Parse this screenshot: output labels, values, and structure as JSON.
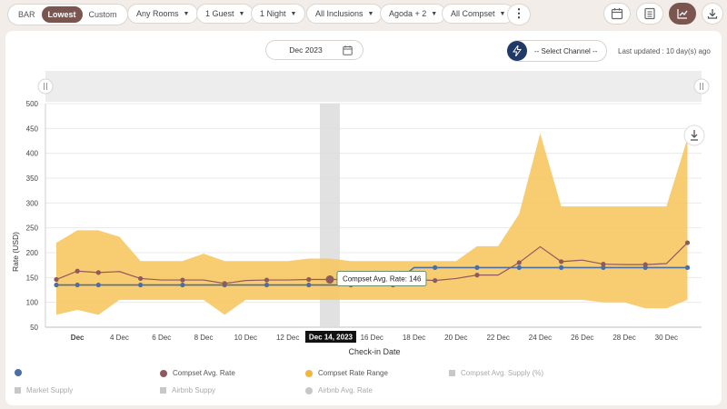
{
  "rate_tabs": [
    "BAR",
    "Lowest",
    "Custom"
  ],
  "filters": {
    "rooms": "Any Rooms",
    "guests": "1 Guest",
    "nights": "1 Night",
    "inclusions": "All Inclusions",
    "channels": "Agoda + 2",
    "compset": "All Compset"
  },
  "month_selector": "Dec 2023",
  "channel_selector": "-- Select Channel --",
  "last_updated": "Last updated : 10 day(s) ago",
  "tooltip": {
    "label": "Compset Avg. Rate: 146",
    "date": "Dec 14, 2023"
  },
  "colors": {
    "brand": "#7b5550",
    "range_fill": "#f7c760",
    "avg_rate": "#8e5a5e",
    "own_rate": "#4a6fa5",
    "nav": "#1f3a66"
  },
  "legend": {
    "row1": [
      "",
      "Compset Avg. Rate",
      "Compset Rate Range",
      "Compset Avg. Supply (%)"
    ],
    "row2": [
      "Market Supply",
      "Airbnb Suppy",
      "Airbnb Avg. Rate"
    ]
  },
  "chart_data": {
    "type": "line",
    "title": "",
    "xlabel": "Check-in Date",
    "ylabel": "Rate (USD)",
    "ylim": [
      50,
      500
    ],
    "yticks": [
      50,
      100,
      150,
      200,
      250,
      300,
      350,
      400,
      450,
      500
    ],
    "x": [
      1,
      2,
      3,
      4,
      5,
      6,
      7,
      8,
      9,
      10,
      11,
      12,
      13,
      14,
      15,
      16,
      17,
      18,
      19,
      20,
      21,
      22,
      23,
      24,
      25,
      26,
      27,
      28,
      29,
      30,
      31
    ],
    "xtick_labels": [
      {
        "day": 2,
        "label": "Dec"
      },
      {
        "day": 4,
        "label": "4 Dec"
      },
      {
        "day": 6,
        "label": "6 Dec"
      },
      {
        "day": 8,
        "label": "8 Dec"
      },
      {
        "day": 10,
        "label": "10 Dec"
      },
      {
        "day": 12,
        "label": "12 Dec"
      },
      {
        "day": 14,
        "label": "Dec 14, 2023"
      },
      {
        "day": 16,
        "label": "16 Dec"
      },
      {
        "day": 18,
        "label": "18 Dec"
      },
      {
        "day": 20,
        "label": "20 Dec"
      },
      {
        "day": 22,
        "label": "22 Dec"
      },
      {
        "day": 24,
        "label": "24 Dec"
      },
      {
        "day": 26,
        "label": "26 Dec"
      },
      {
        "day": 28,
        "label": "28 Dec"
      },
      {
        "day": 30,
        "label": "30 Dec"
      }
    ],
    "series": [
      {
        "name": "",
        "values": [
          135,
          135,
          135,
          135,
          135,
          135,
          135,
          135,
          135,
          135,
          135,
          135,
          135,
          135,
          135,
          135,
          135,
          170,
          170,
          170,
          170,
          170,
          170,
          170,
          170,
          170,
          170,
          170,
          170,
          170,
          170
        ]
      },
      {
        "name": "Compset Avg. Rate",
        "values": [
          146,
          163,
          160,
          162,
          148,
          145,
          145,
          145,
          138,
          144,
          145,
          145,
          146,
          146,
          146,
          146,
          146,
          146,
          144,
          148,
          155,
          155,
          180,
          212,
          182,
          185,
          177,
          176,
          176,
          178,
          220
        ]
      }
    ],
    "range": {
      "name": "Compset Rate Range",
      "low": [
        75,
        85,
        75,
        105,
        105,
        105,
        105,
        105,
        75,
        105,
        105,
        105,
        105,
        105,
        105,
        105,
        105,
        105,
        105,
        105,
        105,
        105,
        105,
        105,
        105,
        105,
        100,
        100,
        88,
        88,
        105
      ],
      "high": [
        220,
        245,
        245,
        232,
        183,
        183,
        183,
        198,
        183,
        183,
        183,
        183,
        188,
        188,
        183,
        183,
        183,
        183,
        183,
        183,
        213,
        213,
        278,
        440,
        293,
        293,
        293,
        293,
        293,
        293,
        430
      ]
    },
    "highlight_day": 14,
    "tooltip_value": 146
  }
}
